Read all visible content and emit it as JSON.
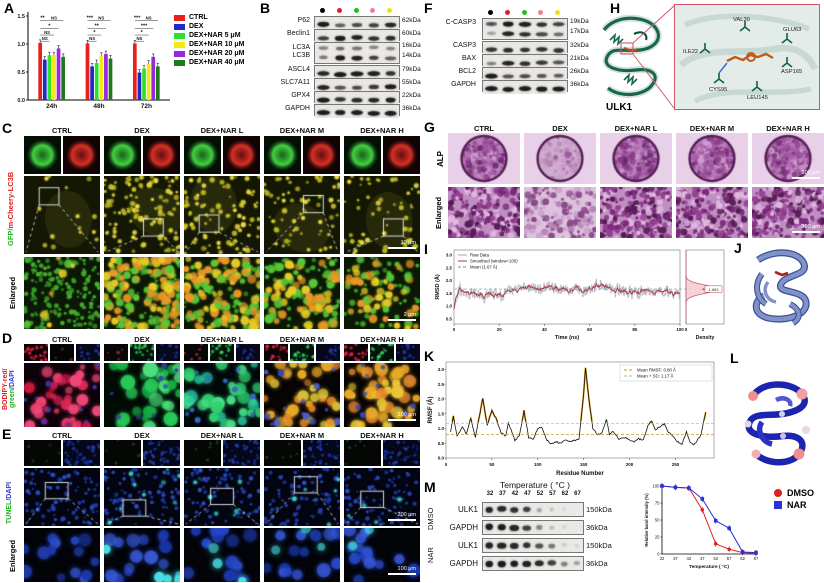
{
  "columns": [
    "CTRL",
    "DEX",
    "DEX+NAR L",
    "DEX+NAR M",
    "DEX+NAR H"
  ],
  "panelA": {
    "label": "A",
    "legend": [
      {
        "label": "CTRL",
        "color": "#e8201c"
      },
      {
        "label": "DEX",
        "color": "#2028c8"
      },
      {
        "label": "DEX+NAR 5 μM",
        "color": "#2ae22a"
      },
      {
        "label": "DEX+NAR 10 μM",
        "color": "#f2ea12"
      },
      {
        "label": "DEX+NAR 20 μM",
        "color": "#9a28dc"
      },
      {
        "label": "DEX+NAR 40 μM",
        "color": "#1e7a1e"
      }
    ],
    "chart_data": {
      "type": "bar",
      "categories": [
        "24h",
        "48h",
        "72h"
      ],
      "series": [
        {
          "name": "CTRL",
          "color": "#e8201c",
          "values": [
            1.02,
            1.01,
            1.01
          ]
        },
        {
          "name": "DEX",
          "color": "#2028c8",
          "values": [
            0.72,
            0.6,
            0.49
          ]
        },
        {
          "name": "DEX+NAR 5 μM",
          "color": "#2ae22a",
          "values": [
            0.8,
            0.66,
            0.56
          ]
        },
        {
          "name": "DEX+NAR 10 μM",
          "color": "#f2ea12",
          "values": [
            0.8,
            0.79,
            0.65
          ]
        },
        {
          "name": "DEX+NAR 20 μM",
          "color": "#9a28dc",
          "values": [
            0.92,
            0.82,
            0.77
          ]
        },
        {
          "name": "DEX+NAR 40 μM",
          "color": "#1e7a1e",
          "values": [
            0.77,
            0.74,
            0.6
          ]
        }
      ],
      "ylim": [
        0,
        1.5
      ],
      "yticks": [
        "0.0",
        "0.5",
        "1.0",
        "1.5"
      ],
      "significance": [
        [
          "**",
          "NS",
          "*",
          "NS",
          "NS"
        ],
        [
          "***",
          "NS",
          "**",
          "*",
          "NS"
        ],
        [
          "***",
          "NS",
          "***",
          "*",
          "NS"
        ]
      ]
    }
  },
  "panelB": {
    "label": "B",
    "lane_dots": [
      "#000000",
      "#e02020",
      "#20c020",
      "#f08090",
      "#ece020"
    ],
    "rows": [
      {
        "name": "P62",
        "kda": "62kDa"
      },
      {
        "name": "Beclin1",
        "kda": "60kDa"
      },
      {
        "name": "LC3A",
        "kda": "16kDa",
        "name2": "LC3B",
        "kda2": "14kDa"
      },
      {
        "name": "ASCL4",
        "kda": "79kDa"
      },
      {
        "name": "SLC7A11",
        "kda": "55kDa"
      },
      {
        "name": "GPX4",
        "kda": "22kDa"
      },
      {
        "name": "GAPDH",
        "kda": "36kDa"
      }
    ]
  },
  "panelF": {
    "label": "F",
    "lane_dots": [
      "#000000",
      "#e02020",
      "#20c020",
      "#f08090",
      "#ece020"
    ],
    "rows": [
      {
        "name": "C-CASP3",
        "kda": "19kDa",
        "kda2": "17kDa"
      },
      {
        "name": "CASP3",
        "kda": "32kDa"
      },
      {
        "name": "BAX",
        "kda": "21kDa"
      },
      {
        "name": "BCL2",
        "kda": "26kDa"
      },
      {
        "name": "GAPDH",
        "kda": "36kDa"
      }
    ]
  },
  "panelC": {
    "label": "C",
    "row_label_parts": [
      {
        "text": "GFP/",
        "color": "#20b020"
      },
      {
        "text": "m-Cheery-LC3B",
        "color": "#e02020"
      }
    ],
    "enlarged_label": "Enlarged",
    "scale_main": "10 μm",
    "scale_enlarged": "2 μm"
  },
  "panelD": {
    "label": "D",
    "row_label_lines": [
      [
        {
          "text": "BODIPY-red/",
          "color": "#e02020"
        }
      ],
      [
        {
          "text": "green",
          "color": "#20b020"
        },
        {
          "text": "/DAPI",
          "color": "#3040d0"
        }
      ]
    ],
    "scale_main": "100 μm"
  },
  "panelE": {
    "label": "E",
    "row_label_parts": [
      {
        "text": "TUNEL",
        "color": "#20b020"
      },
      {
        "text": "/DAPI",
        "color": "#3040d0"
      }
    ],
    "enlarged_label": "Enlarged",
    "scale_main": "200 μm",
    "scale_enlarged": "100 μm"
  },
  "panelG": {
    "label": "G",
    "row_labels": [
      "ALP",
      "Enlarged"
    ],
    "scale_main": "500 μm",
    "scale_enlarged": "300 μm"
  },
  "panelH": {
    "label": "H",
    "protein": "ULK1",
    "residues": [
      "VAL30",
      "GLU63",
      "ILE22",
      "ASP165",
      "CYS95",
      "LEU145"
    ]
  },
  "panelI": {
    "label": "I",
    "chart_data": {
      "type": "line",
      "xlabel": "Time (ns)",
      "ylabel": "RMSD (Å)",
      "xticks": [
        0,
        20,
        40,
        60,
        80,
        100
      ],
      "yticks": [
        "0.5",
        "1.0",
        "1.5",
        "2.0",
        "2.5",
        "3.0"
      ],
      "legend": [
        "Raw Data",
        "Smoothed (window=100)",
        "Mean (1.67 Å)"
      ],
      "mean": 1.67,
      "peak_annotation": "1.663",
      "density_label": "Density",
      "density_xticks": [
        0,
        2
      ]
    }
  },
  "panelJ": {
    "label": "J"
  },
  "panelK": {
    "label": "K",
    "chart_data": {
      "type": "line",
      "xlabel": "Residue Number",
      "ylabel": "RMSF (Å)",
      "xticks": [
        0,
        50,
        100,
        150,
        200,
        250
      ],
      "yticks": [
        "0.0",
        "0.5",
        "1.0",
        "1.5",
        "2.0",
        "2.5",
        "3.0"
      ],
      "legend": [
        "Mean RMSF: 0.80 Å",
        "Mean + SD: 1.17 Å"
      ],
      "mean": 0.8,
      "mean_plus_sd": 1.17,
      "keypoints": [
        [
          5,
          0.9
        ],
        [
          8,
          1.4
        ],
        [
          12,
          0.75
        ],
        [
          18,
          1.05
        ],
        [
          22,
          0.8
        ],
        [
          27,
          1.35
        ],
        [
          32,
          0.7
        ],
        [
          40,
          2.02
        ],
        [
          45,
          1.1
        ],
        [
          50,
          1.62
        ],
        [
          55,
          1.3
        ],
        [
          60,
          0.85
        ],
        [
          65,
          0.75
        ],
        [
          68,
          1.2
        ],
        [
          75,
          0.6
        ],
        [
          80,
          0.75
        ],
        [
          85,
          1.6
        ],
        [
          90,
          0.7
        ],
        [
          95,
          0.62
        ],
        [
          100,
          1.0
        ],
        [
          104,
          1.05
        ],
        [
          110,
          0.6
        ],
        [
          115,
          0.48
        ],
        [
          120,
          0.55
        ],
        [
          125,
          0.5
        ],
        [
          130,
          0.6
        ],
        [
          135,
          0.55
        ],
        [
          140,
          0.6
        ],
        [
          145,
          0.65
        ],
        [
          150,
          2.2
        ],
        [
          152,
          3.05
        ],
        [
          156,
          1.9
        ],
        [
          160,
          1.0
        ],
        [
          165,
          0.78
        ],
        [
          170,
          0.85
        ],
        [
          175,
          1.3
        ],
        [
          178,
          0.8
        ],
        [
          182,
          0.92
        ],
        [
          188,
          0.65
        ],
        [
          195,
          0.7
        ],
        [
          200,
          0.6
        ],
        [
          205,
          0.55
        ],
        [
          210,
          0.65
        ],
        [
          215,
          0.6
        ],
        [
          220,
          1.1
        ],
        [
          224,
          1.25
        ],
        [
          228,
          0.95
        ],
        [
          232,
          1.05
        ],
        [
          238,
          1.15
        ],
        [
          242,
          0.9
        ],
        [
          247,
          0.75
        ],
        [
          252,
          0.55
        ],
        [
          257,
          0.45
        ],
        [
          262,
          0.9
        ],
        [
          266,
          0.5
        ],
        [
          270,
          0.45
        ],
        [
          274,
          0.6
        ],
        [
          278,
          0.8
        ],
        [
          283,
          1.55
        ]
      ]
    }
  },
  "panelL": {
    "label": "L"
  },
  "panelM": {
    "label": "M",
    "blot": {
      "header": "Temperature ( °C )",
      "temps": [
        "32",
        "37",
        "42",
        "47",
        "52",
        "57",
        "62",
        "67"
      ],
      "groups": [
        {
          "name": "DMSO",
          "rows": [
            {
              "name": "ULK1",
              "kda": "150kDa"
            },
            {
              "name": "GAPDH",
              "kda": "36kDa"
            }
          ]
        },
        {
          "name": "NAR",
          "rows": [
            {
              "name": "ULK1",
              "kda": "150kDa"
            },
            {
              "name": "GAPDH",
              "kda": "36kDa"
            }
          ]
        }
      ]
    },
    "chart_data": {
      "type": "line",
      "xlabel": "Temperature ( °C)",
      "ylabel": "Relative band intensity (%)",
      "x": [
        32,
        37,
        42,
        47,
        52,
        57,
        62,
        67
      ],
      "yticks": [
        0,
        25,
        50,
        75,
        100
      ],
      "series": [
        {
          "name": "DMSO",
          "color": "#e02020",
          "values": [
            100,
            98,
            97,
            65,
            15,
            7,
            2,
            1
          ]
        },
        {
          "name": "NAR",
          "color": "#2830d8",
          "values": [
            100,
            98,
            97,
            81,
            49,
            38,
            3,
            2
          ]
        }
      ]
    },
    "legend": [
      {
        "label": "DMSO",
        "color": "#e02020"
      },
      {
        "label": "NAR",
        "color": "#2830d8"
      }
    ]
  }
}
